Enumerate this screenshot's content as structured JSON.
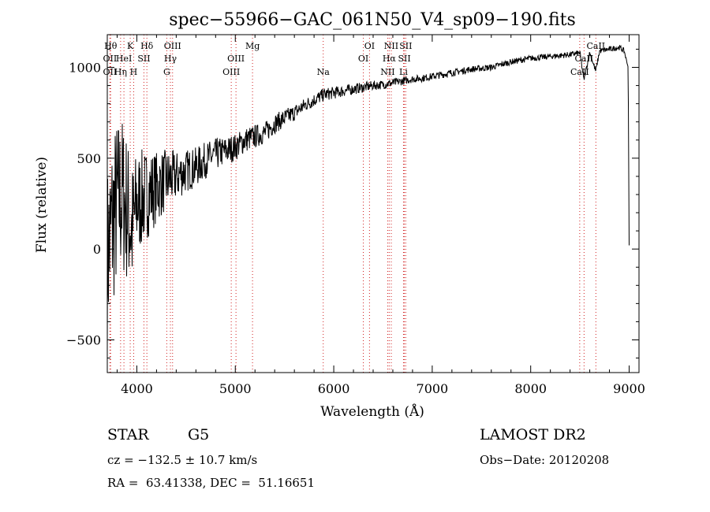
{
  "chart_data": {
    "type": "line",
    "title": "spec−55966−GAC_061N50_V4_sp09−190.fits",
    "xlabel": "Wavelength (Å)",
    "ylabel": "Flux (relative)",
    "xlim": [
      3700,
      9100
    ],
    "ylim": [
      -680,
      1180
    ],
    "xticks": [
      4000,
      5000,
      6000,
      7000,
      8000,
      9000
    ],
    "yticks": [
      -500,
      0,
      500,
      1000
    ],
    "tick_labels_y": [
      "−500",
      "0",
      "500",
      "1000"
    ],
    "grid": false,
    "series": [
      {
        "x": [
          3700,
          3750,
          3800,
          3850,
          3900,
          3950,
          4000,
          4100,
          4200,
          4300,
          4400,
          4500,
          4600,
          4700,
          4800,
          4900,
          5000,
          5100,
          5200,
          5300,
          5400,
          5500,
          5600,
          5700,
          5800,
          5900,
          6000,
          6100,
          6200,
          6300,
          6400,
          6500,
          6600,
          6700,
          6800,
          6900,
          7000,
          7200,
          7400,
          7600,
          7800,
          8000,
          8200,
          8400,
          8500,
          8540,
          8600,
          8660,
          8700,
          8800,
          8900,
          8950,
          8990,
          9000
        ],
        "y": [
          -50,
          150,
          250,
          300,
          220,
          100,
          250,
          300,
          340,
          380,
          400,
          430,
          450,
          490,
          520,
          540,
          560,
          600,
          620,
          640,
          690,
          720,
          750,
          790,
          820,
          850,
          860,
          870,
          880,
          890,
          900,
          905,
          915,
          925,
          935,
          940,
          950,
          970,
          990,
          1000,
          1030,
          1050,
          1060,
          1070,
          1080,
          930,
          1080,
          980,
          1090,
          1100,
          1110,
          1090,
          1000,
          20
        ],
        "noise_amplitude": [
          500,
          500,
          480,
          450,
          420,
          380,
          300,
          250,
          200,
          170,
          140,
          120,
          110,
          100,
          90,
          80,
          75,
          70,
          65,
          60,
          55,
          50,
          45,
          40,
          38,
          36,
          34,
          32,
          30,
          28,
          26,
          25,
          24,
          22,
          20,
          20,
          20,
          19,
          18,
          18,
          17,
          17,
          16,
          16,
          15,
          15,
          15,
          15,
          15,
          15,
          15,
          15,
          0,
          0
        ]
      }
    ],
    "lines": [
      {
        "x": 3734,
        "label": "Hθ",
        "row": 0
      },
      {
        "x": 3727,
        "label": "OII",
        "row": 1
      },
      {
        "x": 3727,
        "label": "OII",
        "row": 2
      },
      {
        "x": 3835,
        "label": "Hη",
        "row": 2
      },
      {
        "x": 3869,
        "label": "HeI",
        "row": 1
      },
      {
        "x": 3933,
        "label": "K",
        "row": 0
      },
      {
        "x": 3968,
        "label": "H",
        "row": 2
      },
      {
        "x": 4072,
        "label": "SII",
        "row": 1
      },
      {
        "x": 4102,
        "label": "Hδ",
        "row": 0
      },
      {
        "x": 4304,
        "label": "G",
        "row": 2
      },
      {
        "x": 4341,
        "label": "Hγ",
        "row": 1
      },
      {
        "x": 4363,
        "label": "OIII",
        "row": 0
      },
      {
        "x": 4959,
        "label": "OIII",
        "row": 2
      },
      {
        "x": 5007,
        "label": "OIII",
        "row": 1
      },
      {
        "x": 5175,
        "label": "Mg",
        "row": 0
      },
      {
        "x": 5893,
        "label": "Na",
        "row": 2
      },
      {
        "x": 6300,
        "label": "OI",
        "row": 1
      },
      {
        "x": 6363,
        "label": "OI",
        "row": 0
      },
      {
        "x": 6548,
        "label": "NII",
        "row": 2
      },
      {
        "x": 6563,
        "label": "Hα",
        "row": 1
      },
      {
        "x": 6584,
        "label": "NII",
        "row": 0
      },
      {
        "x": 6708,
        "label": "Li",
        "row": 2
      },
      {
        "x": 6717,
        "label": "SII",
        "row": 1
      },
      {
        "x": 6731,
        "label": "SII",
        "row": 0
      },
      {
        "x": 8498,
        "label": "CaII",
        "row": 2
      },
      {
        "x": 8542,
        "label": "CaII",
        "row": 1
      },
      {
        "x": 8662,
        "label": "CaII",
        "row": 0
      }
    ]
  },
  "info": {
    "class": "STAR",
    "subclass": "G5",
    "survey": "LAMOST DR2",
    "cz": "cz = −132.5 ± 10.7 km/s",
    "obsdate": "Obs−Date: 20120208",
    "radec": "RA =  63.41338, DEC =  51.16651"
  }
}
